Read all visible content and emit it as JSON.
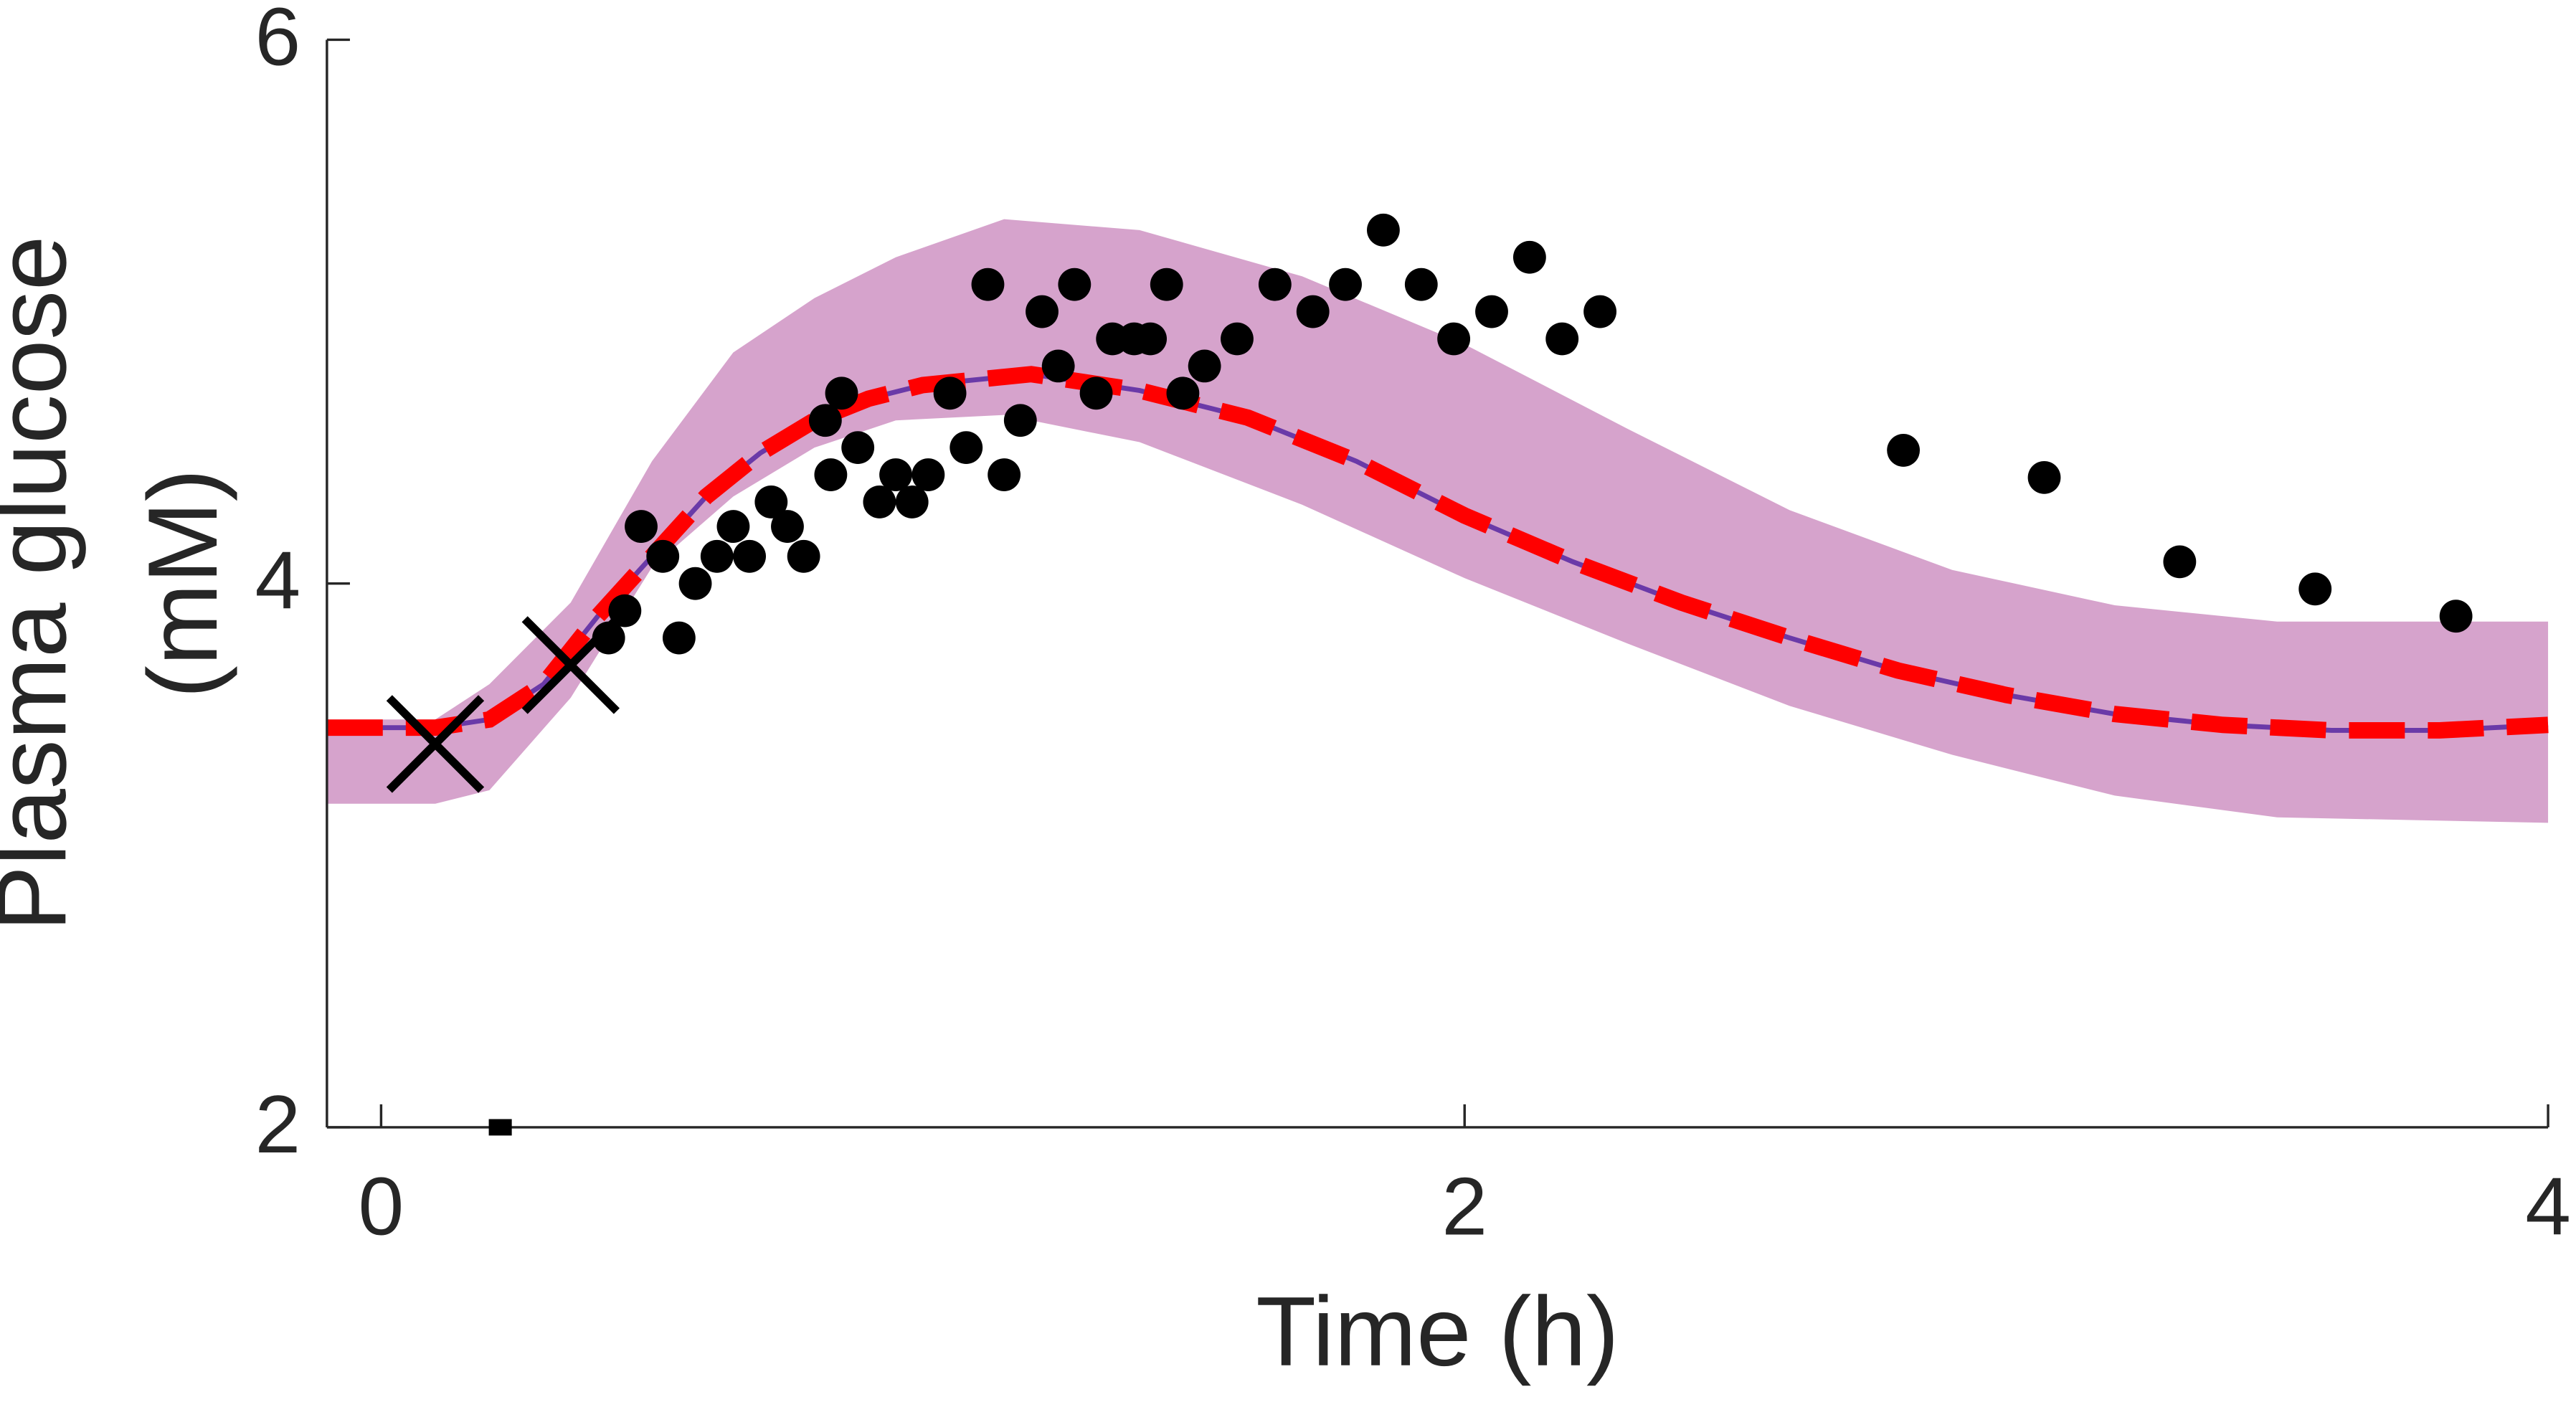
{
  "chart_data": {
    "type": "scatter",
    "xlabel": "Time (h)",
    "ylabel": [
      "Plasma glucose",
      "(mM)"
    ],
    "xlim": [
      -0.1,
      4
    ],
    "ylim": [
      2,
      6
    ],
    "xticks": [
      0,
      2,
      4
    ],
    "yticks": [
      2,
      4,
      6
    ],
    "band": {
      "color": "#d6a3cc",
      "x": [
        -0.1,
        0.1,
        0.2,
        0.35,
        0.5,
        0.65,
        0.8,
        0.95,
        1.15,
        1.4,
        1.7,
        2.0,
        2.3,
        2.6,
        2.9,
        3.2,
        3.5,
        4.0
      ],
      "upper": [
        3.5,
        3.5,
        3.63,
        3.93,
        4.45,
        4.85,
        5.05,
        5.2,
        5.34,
        5.3,
        5.13,
        4.88,
        4.57,
        4.27,
        4.05,
        3.92,
        3.86,
        3.86
      ],
      "lower": [
        3.19,
        3.19,
        3.24,
        3.58,
        4.06,
        4.32,
        4.5,
        4.6,
        4.62,
        4.52,
        4.29,
        4.02,
        3.78,
        3.55,
        3.37,
        3.22,
        3.14,
        3.12
      ]
    },
    "line": {
      "color": "#ff0000",
      "x": [
        -0.1,
        0,
        0.1,
        0.2,
        0.3,
        0.4,
        0.5,
        0.6,
        0.7,
        0.8,
        0.9,
        1.0,
        1.2,
        1.4,
        1.6,
        1.8,
        2.0,
        2.2,
        2.4,
        2.6,
        2.8,
        3.0,
        3.2,
        3.4,
        3.6,
        3.8,
        4.0
      ],
      "values": [
        3.47,
        3.47,
        3.47,
        3.5,
        3.63,
        3.88,
        4.1,
        4.32,
        4.48,
        4.6,
        4.68,
        4.73,
        4.77,
        4.71,
        4.61,
        4.45,
        4.25,
        4.08,
        3.93,
        3.8,
        3.68,
        3.59,
        3.52,
        3.48,
        3.46,
        3.46,
        3.48
      ]
    },
    "series": [
      {
        "marker": "dot",
        "color": "#000000",
        "x": [
          0.48,
          0.42,
          0.45,
          0.52,
          0.55,
          0.58,
          0.62,
          0.65,
          0.68,
          0.72,
          0.75,
          0.78,
          0.82,
          0.83,
          0.85,
          0.88,
          0.92,
          0.95,
          0.98,
          1.01,
          1.05,
          1.08,
          1.12,
          1.15,
          1.18,
          1.22,
          1.25,
          1.28,
          1.32,
          1.35,
          1.39,
          1.42,
          1.45,
          1.48,
          1.52,
          1.58,
          1.65,
          1.72,
          1.78,
          1.85,
          1.92,
          1.98,
          2.05,
          2.12,
          2.18,
          2.25,
          2.81,
          3.07,
          3.32,
          3.57,
          3.83
        ],
        "values": [
          4.21,
          3.8,
          3.9,
          4.1,
          3.8,
          4.0,
          4.1,
          4.21,
          4.1,
          4.3,
          4.21,
          4.1,
          4.6,
          4.4,
          4.7,
          4.5,
          4.3,
          4.4,
          4.3,
          4.4,
          4.7,
          4.5,
          5.1,
          4.4,
          4.6,
          5.0,
          4.8,
          5.1,
          4.7,
          4.9,
          4.9,
          4.9,
          5.1,
          4.7,
          4.8,
          4.9,
          5.1,
          5.0,
          5.1,
          5.3,
          5.1,
          4.9,
          5.0,
          5.2,
          4.9,
          5.0,
          4.49,
          4.39,
          4.08,
          3.98,
          3.88
        ]
      },
      {
        "marker": "cross",
        "color": "#000000",
        "x": [
          0.1,
          0.35
        ],
        "values": [
          3.41,
          3.7
        ]
      },
      {
        "marker": "square",
        "color": "#000000",
        "x": [
          0.22
        ],
        "values": [
          2
        ]
      }
    ]
  }
}
